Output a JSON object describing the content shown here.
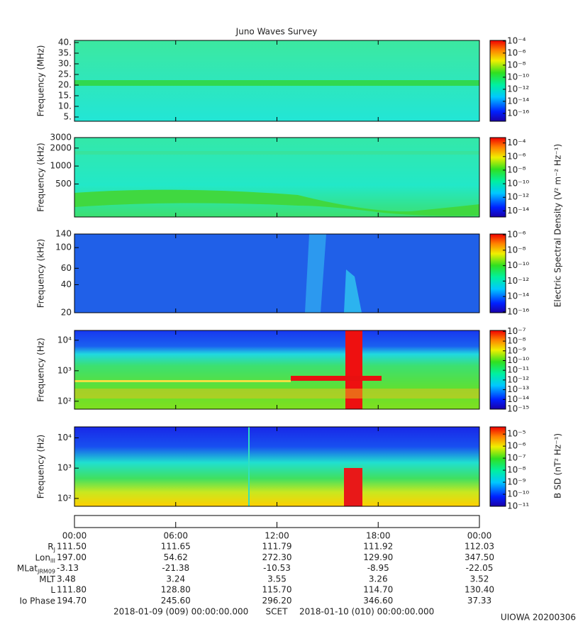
{
  "title": "Juno Waves Survey",
  "chart_data": [
    {
      "type": "spectrogram",
      "ylabel": "Frequency (MHz)",
      "ylim": [
        3,
        41
      ],
      "log": false,
      "yticks": [
        {
          "value": 40,
          "label": "40."
        },
        {
          "value": 35,
          "label": "35."
        },
        {
          "value": 30,
          "label": "30."
        },
        {
          "value": 25,
          "label": "25."
        },
        {
          "value": 20,
          "label": "20."
        },
        {
          "value": 15,
          "label": "15."
        },
        {
          "value": 10,
          "label": "10."
        },
        {
          "value": 5,
          "label": "5."
        }
      ],
      "colorbar": {
        "lim": [
          -17.3,
          -3.9
        ],
        "ticks": [
          {
            "value": -4,
            "label": "10⁻⁴"
          },
          {
            "value": -6,
            "label": "10⁻⁶"
          },
          {
            "value": -8,
            "label": "10⁻⁸"
          },
          {
            "value": -10,
            "label": "10⁻¹⁰"
          },
          {
            "value": -12,
            "label": "10⁻¹²"
          },
          {
            "value": -14,
            "label": "10⁻¹⁴"
          },
          {
            "value": -16,
            "label": "10⁻¹⁶"
          }
        ]
      }
    },
    {
      "type": "spectrogram",
      "ylabel": "Frequency (kHz)",
      "ylim": [
        140,
        3000
      ],
      "log": true,
      "yticks": [
        3000,
        2000,
        1000,
        500
      ],
      "colorbar": {
        "lim": [
          -14.9,
          -3.2
        ],
        "ticks": [
          {
            "value": -4,
            "label": "10⁻⁴"
          },
          {
            "value": -6,
            "label": "10⁻⁶"
          },
          {
            "value": -8,
            "label": "10⁻⁸"
          },
          {
            "value": -10,
            "label": "10⁻¹⁰"
          },
          {
            "value": -12,
            "label": "10⁻¹²"
          },
          {
            "value": -14,
            "label": "10⁻¹⁴"
          }
        ]
      }
    },
    {
      "type": "spectrogram",
      "ylabel": "Frequency (kHz)",
      "ylim": [
        20,
        140
      ],
      "log": true,
      "yticks": [
        140,
        100,
        60,
        40,
        20
      ],
      "colorbar": {
        "lim": [
          -16.1,
          -5.9
        ],
        "ticks": [
          {
            "value": -6,
            "label": "10⁻⁶"
          },
          {
            "value": -8,
            "label": "10⁻⁸"
          },
          {
            "value": -10,
            "label": "10⁻¹⁰"
          },
          {
            "value": -12,
            "label": "10⁻¹²"
          },
          {
            "value": -14,
            "label": "10⁻¹⁴"
          },
          {
            "value": -16,
            "label": "10⁻¹⁶"
          }
        ]
      }
    },
    {
      "type": "spectrogram",
      "ylabel": "Frequency (Hz)",
      "ylim": [
        55,
        21000
      ],
      "log": true,
      "yticks": [
        {
          "value": 10000,
          "label": "10⁴"
        },
        {
          "value": 1000,
          "label": "10³"
        },
        {
          "value": 100,
          "label": "10²"
        }
      ],
      "colorbar": {
        "lim": [
          -15,
          -6.9
        ],
        "ticks": [
          {
            "value": -7,
            "label": "10⁻⁷"
          },
          {
            "value": -8,
            "label": "10⁻⁸"
          },
          {
            "value": -9,
            "label": "10⁻⁹"
          },
          {
            "value": -10,
            "label": "10⁻¹⁰"
          },
          {
            "value": -11,
            "label": "10⁻¹¹"
          },
          {
            "value": -12,
            "label": "10⁻¹²"
          },
          {
            "value": -13,
            "label": "10⁻¹³"
          },
          {
            "value": -14,
            "label": "10⁻¹⁴"
          },
          {
            "value": -15,
            "label": "10⁻¹⁵"
          }
        ]
      }
    },
    {
      "type": "spectrogram",
      "ylabel": "Frequency (Hz)",
      "ylim": [
        55,
        23000
      ],
      "log": true,
      "yticks": [
        {
          "value": 10000,
          "label": "10⁴"
        },
        {
          "value": 1000,
          "label": "10³"
        },
        {
          "value": 100,
          "label": "10²"
        }
      ],
      "colorbar": {
        "lim": [
          -11,
          -4.4
        ],
        "ticks": [
          {
            "value": -5,
            "label": "10⁻⁵"
          },
          {
            "value": -6,
            "label": "10⁻⁶"
          },
          {
            "value": -7,
            "label": "10⁻⁷"
          },
          {
            "value": -8,
            "label": "10⁻⁸"
          },
          {
            "value": -9,
            "label": "10⁻⁹"
          },
          {
            "value": -10,
            "label": "10⁻¹⁰"
          },
          {
            "value": -11,
            "label": "10⁻¹¹"
          }
        ]
      }
    }
  ],
  "colorbar_labels": [
    "Electric Spectral Density (V² m⁻² Hz⁻¹)",
    "B SD (nT² Hz⁻¹)"
  ],
  "time_axis": {
    "xlim": [
      0,
      24
    ],
    "xticks": [
      {
        "value": 0,
        "label": "00:00"
      },
      {
        "value": 6,
        "label": "06:00"
      },
      {
        "value": 12,
        "label": "12:00"
      },
      {
        "value": 18,
        "label": "18:00"
      },
      {
        "value": 24,
        "label": "00:00"
      }
    ]
  },
  "ephemeris": [
    {
      "label": "R",
      "sub": "J",
      "values": [
        "111.50",
        "111.65",
        "111.79",
        "111.92",
        "112.03"
      ]
    },
    {
      "label": "Lon",
      "sub": "III",
      "values": [
        "197.00",
        "54.62",
        "272.30",
        "129.90",
        "347.50"
      ]
    },
    {
      "label": "MLat",
      "sub": "JRM09",
      "values": [
        "-3.13",
        "-21.38",
        "-10.53",
        "-8.95",
        "-22.05"
      ]
    },
    {
      "label": "MLT",
      "values": [
        "3.48",
        "3.24",
        "3.55",
        "3.26",
        "3.52"
      ]
    },
    {
      "label": "L",
      "values": [
        "111.80",
        "128.80",
        "115.70",
        "114.70",
        "130.40"
      ]
    },
    {
      "label": "Io Phase",
      "values": [
        "194.70",
        "245.60",
        "296.20",
        "346.60",
        "37.33"
      ]
    }
  ],
  "footer": {
    "start": "2018-01-09 (009) 00:00:00.000",
    "axis": "SCET",
    "end": "2018-01-10 (010) 00:00:00.000",
    "stamp": "UIOWA 20200306"
  }
}
